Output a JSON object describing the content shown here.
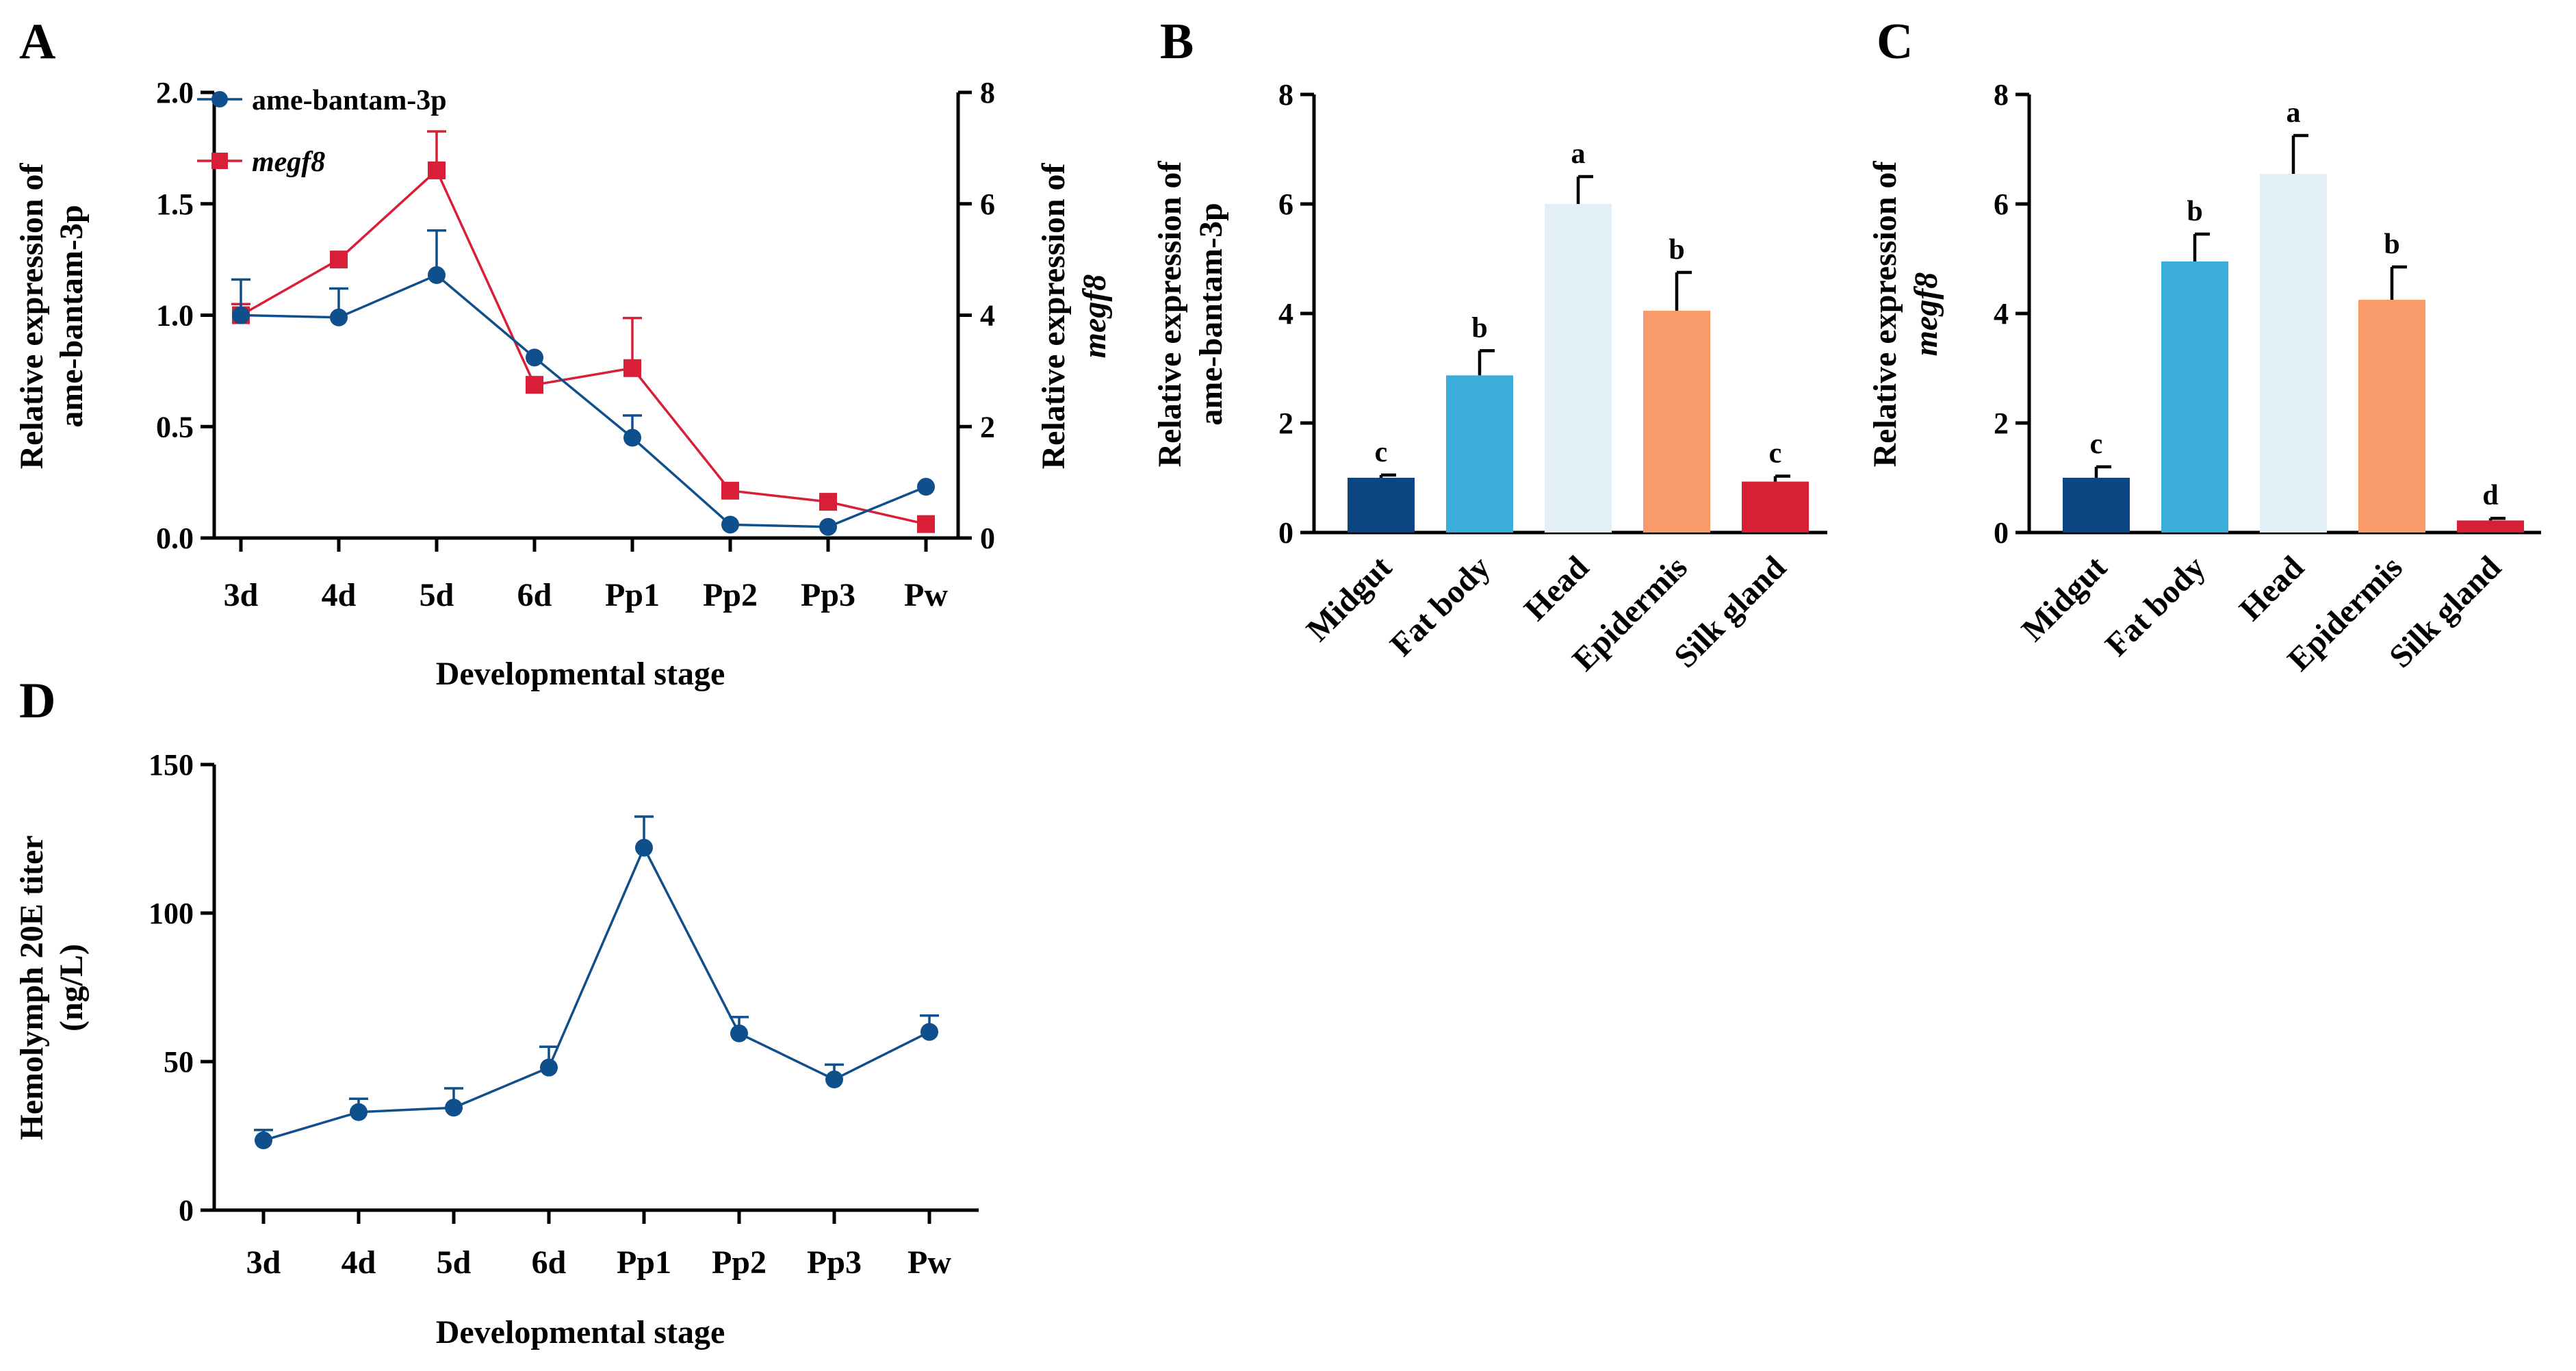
{
  "panel_labels": {
    "a": "A",
    "b": "B",
    "c": "C",
    "d": "D"
  },
  "colors": {
    "series_blue": "#0e4f8c",
    "series_red": "#d81f37",
    "bar_midgut": "#0c4682",
    "bar_fatbody": "#3aaed8",
    "bar_head": "#e3eff6",
    "bar_epidermis": "#f99a6b",
    "bar_silkgland": "#d71f36"
  },
  "chart_data": [
    {
      "id": "A",
      "type": "line",
      "categories": [
        "3d",
        "4d",
        "5d",
        "6d",
        "Pp1",
        "Pp2",
        "Pp3",
        "Pw"
      ],
      "xlabel": "Developmental stage",
      "ylabel_left_line1": "Relative expression of",
      "ylabel_left_line2": "ame-bantam-3p",
      "ylabel_right_line1": "Relative expression of",
      "ylabel_right_line2": "megf8",
      "ylim_left": [
        0,
        2.0
      ],
      "yticks_left": [
        "0.0",
        "0.5",
        "1.0",
        "1.5",
        "2.0"
      ],
      "ylim_right": [
        0,
        8
      ],
      "yticks_right": [
        "0",
        "2",
        "4",
        "6",
        "8"
      ],
      "legend_position": "top-left",
      "series": [
        {
          "name": "ame-bantam-3p",
          "axis": "left",
          "marker": "circle",
          "values": [
            1.0,
            0.99,
            1.18,
            0.81,
            0.45,
            0.06,
            0.05,
            0.23
          ],
          "errors": [
            0.16,
            0.13,
            0.2,
            0.0,
            0.1,
            0.0,
            0.0,
            0.0
          ]
        },
        {
          "name": "megf8",
          "axis": "right",
          "marker": "square",
          "values": [
            4.0,
            5.0,
            6.6,
            2.75,
            3.05,
            0.85,
            0.65,
            0.25
          ],
          "errors": [
            0.2,
            0.0,
            0.7,
            0.0,
            0.9,
            0.0,
            0.0,
            0.0
          ]
        }
      ]
    },
    {
      "id": "B",
      "type": "bar",
      "categories": [
        "Midgut",
        "Fat body",
        "Head",
        "Epidermis",
        "Silk gland"
      ],
      "values": [
        1.0,
        2.87,
        6.0,
        4.05,
        0.93
      ],
      "errors": [
        0.05,
        0.45,
        0.5,
        0.7,
        0.1
      ],
      "letters": [
        "c",
        "b",
        "a",
        "b",
        "c"
      ],
      "ylabel_line1": "Relative expression of",
      "ylabel_line2": "ame-bantam-3p",
      "ylim": [
        0,
        8
      ],
      "yticks": [
        "0",
        "2",
        "4",
        "6",
        "8"
      ]
    },
    {
      "id": "C",
      "type": "bar",
      "categories": [
        "Midgut",
        "Fat body",
        "Head",
        "Epidermis",
        "Silk gland"
      ],
      "values": [
        1.0,
        4.95,
        6.55,
        4.25,
        0.22
      ],
      "errors": [
        0.2,
        0.5,
        0.7,
        0.6,
        0.04
      ],
      "letters": [
        "c",
        "b",
        "a",
        "b",
        "d"
      ],
      "ylabel_line1": "Relative expression of",
      "ylabel_line2": "megf8",
      "ylim": [
        0,
        8
      ],
      "yticks": [
        "0",
        "2",
        "4",
        "6",
        "8"
      ]
    },
    {
      "id": "D",
      "type": "line",
      "categories": [
        "3d",
        "4d",
        "5d",
        "6d",
        "Pp1",
        "Pp2",
        "Pp3",
        "Pw"
      ],
      "series": [
        {
          "name": "Hemolymph 20E titer",
          "marker": "circle",
          "values": [
            23.5,
            33,
            34.5,
            48,
            122,
            59.5,
            44,
            60
          ],
          "errors": [
            3.5,
            4.5,
            6.5,
            7,
            10.5,
            5.5,
            5,
            5.5
          ]
        }
      ],
      "xlabel": "Developmental stage",
      "ylabel_line1": "Hemolymph 20E titer",
      "ylabel_line2": "(ng/L)",
      "ylim": [
        0,
        150
      ],
      "yticks": [
        "0",
        "50",
        "100",
        "150"
      ]
    }
  ]
}
